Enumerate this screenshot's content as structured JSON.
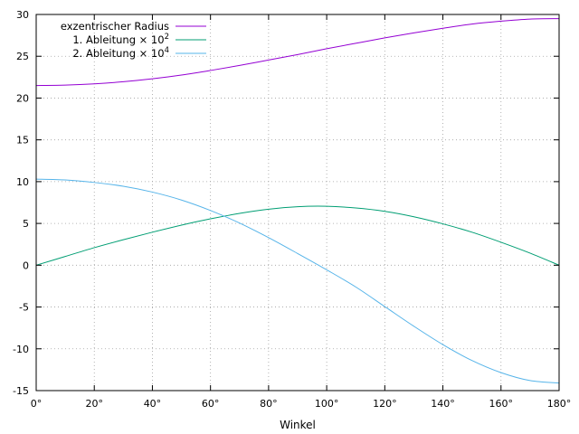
{
  "chart_data": {
    "type": "line",
    "xlabel": "Winkel",
    "ylabel": "",
    "xlim": [
      0,
      180
    ],
    "ylim": [
      -15,
      30
    ],
    "x_ticks": [
      0,
      20,
      40,
      60,
      80,
      100,
      120,
      140,
      160,
      180
    ],
    "x_tick_labels": [
      "0°",
      "20°",
      "40°",
      "60°",
      "80°",
      "100°",
      "120°",
      "140°",
      "160°",
      "180°"
    ],
    "y_ticks": [
      -15,
      -10,
      -5,
      0,
      5,
      10,
      15,
      20,
      25,
      30
    ],
    "y_tick_labels": [
      "-15",
      "-10",
      "-5",
      "0",
      "5",
      "10",
      "15",
      "20",
      "25",
      "30"
    ],
    "grid": true,
    "legend_position": "top-left",
    "x": [
      0,
      10,
      20,
      30,
      40,
      50,
      60,
      70,
      80,
      90,
      100,
      110,
      120,
      130,
      140,
      150,
      160,
      170,
      180
    ],
    "series": [
      {
        "name": "exzentrischer Radius",
        "color": "#9400d3",
        "values": [
          21.5,
          21.55,
          21.7,
          21.95,
          22.3,
          22.75,
          23.3,
          23.9,
          24.55,
          25.2,
          25.9,
          26.55,
          27.2,
          27.8,
          28.35,
          28.85,
          29.2,
          29.45,
          29.5
        ]
      },
      {
        "name": "1. Ableitung × 10",
        "name_superscript": "2",
        "color": "#009e73",
        "values": [
          0,
          1.05,
          2.1,
          3.05,
          3.95,
          4.8,
          5.55,
          6.2,
          6.7,
          7.0,
          7.05,
          6.85,
          6.45,
          5.8,
          4.95,
          3.95,
          2.75,
          1.45,
          0
        ]
      },
      {
        "name": "2. Ableitung × 10",
        "name_superscript": "4",
        "color": "#56b4e9",
        "values": [
          10.3,
          10.2,
          9.9,
          9.45,
          8.75,
          7.8,
          6.55,
          5.05,
          3.3,
          1.4,
          -0.55,
          -2.6,
          -4.95,
          -7.3,
          -9.5,
          -11.4,
          -12.85,
          -13.8,
          -14.1
        ]
      }
    ]
  }
}
